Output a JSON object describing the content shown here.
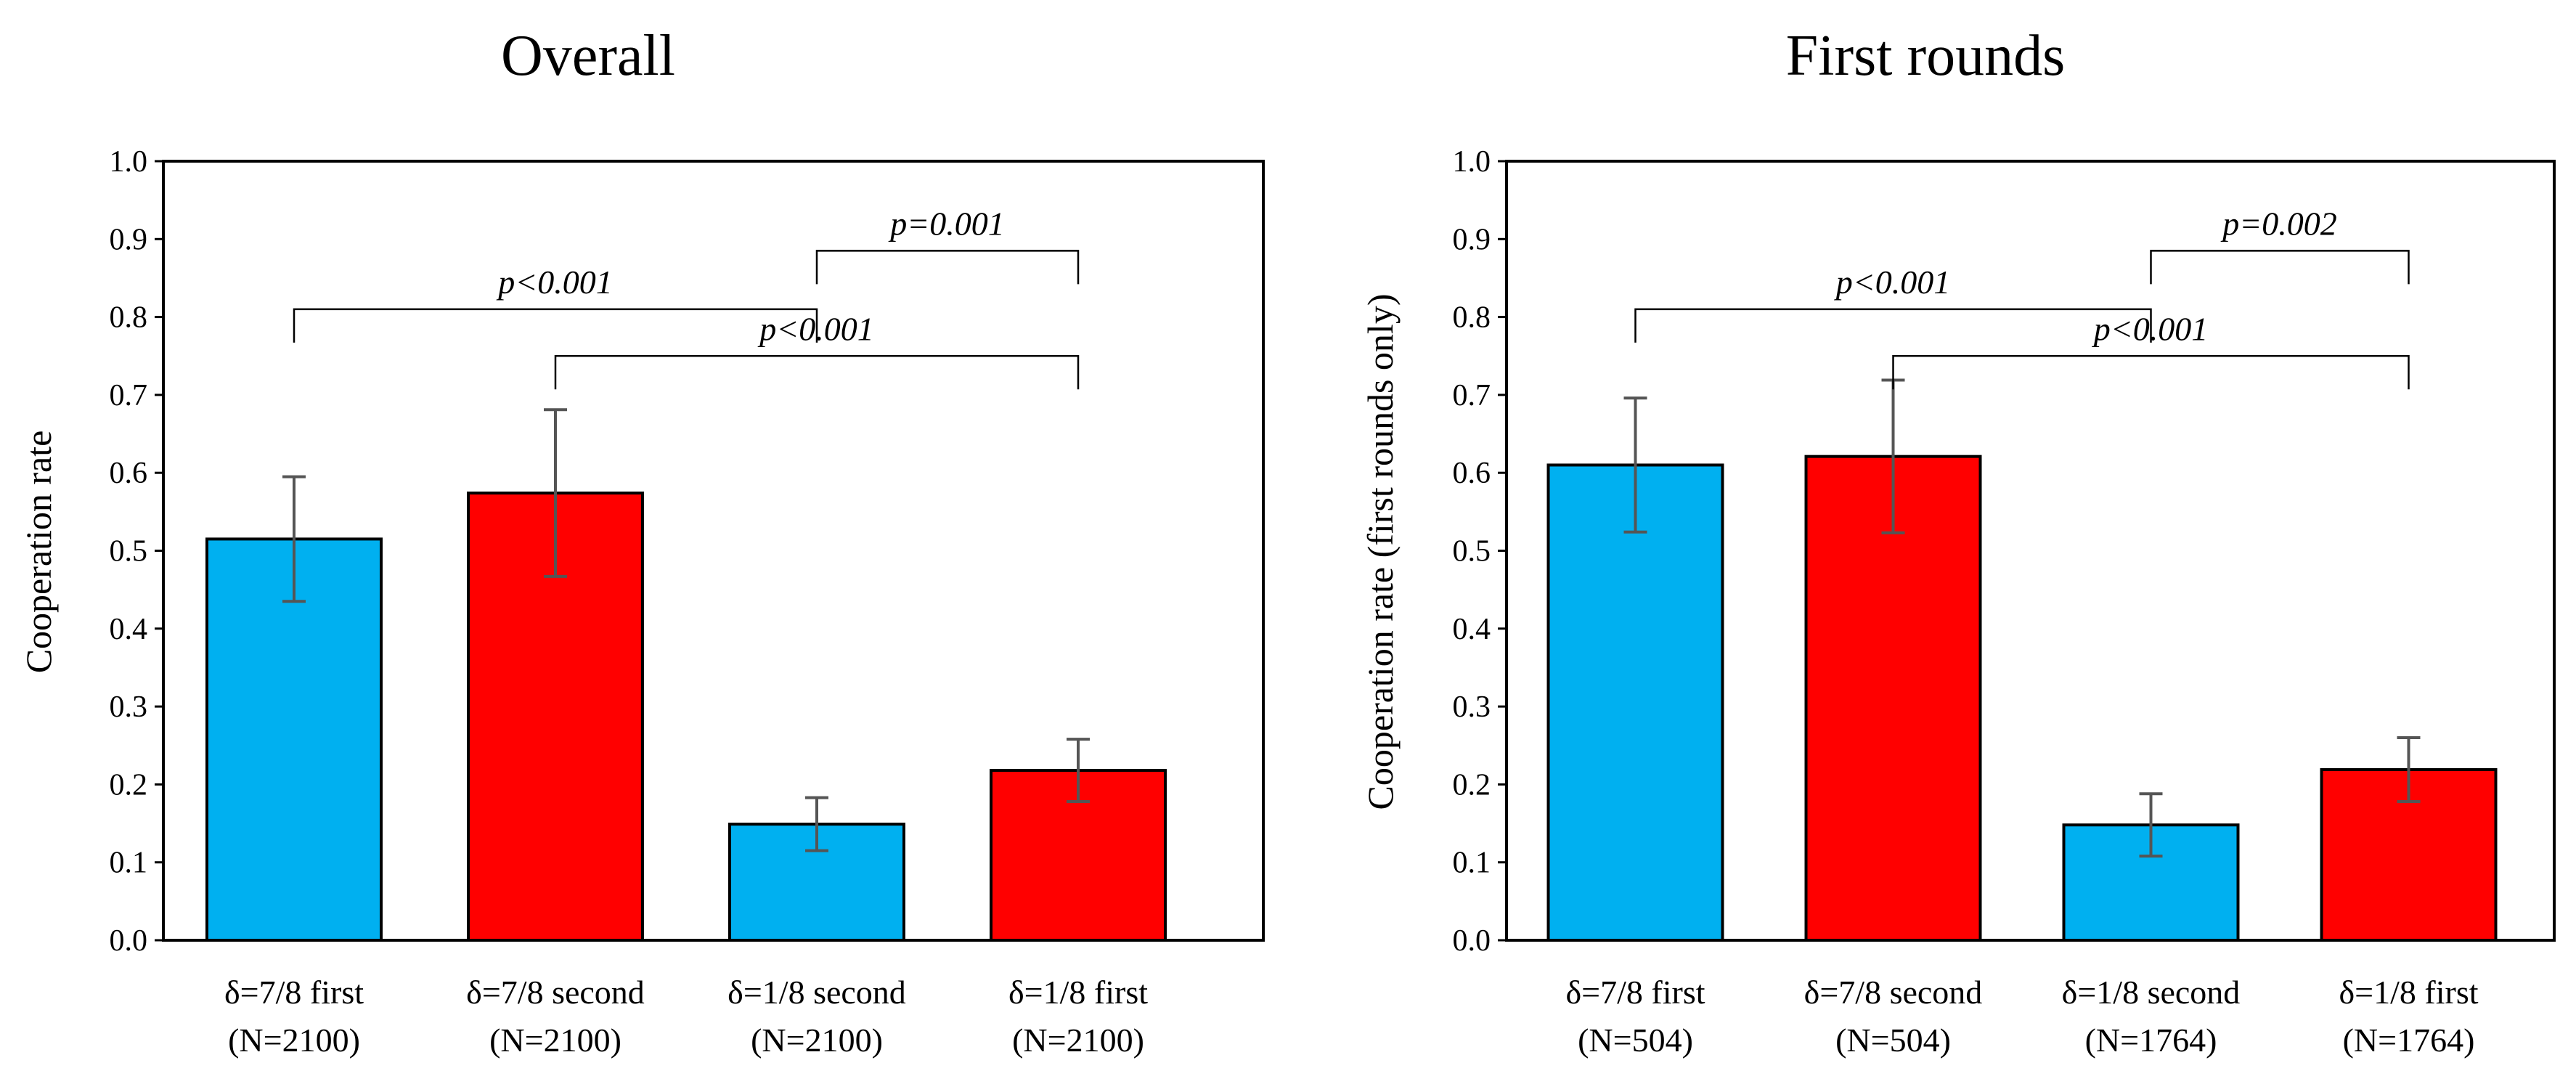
{
  "chart_data": [
    {
      "type": "bar",
      "title": "Overall",
      "ylabel": "Cooperation rate",
      "xlabel": "",
      "ylim": [
        0,
        1.0
      ],
      "yticks": [
        "0.0",
        "0.1",
        "0.2",
        "0.3",
        "0.4",
        "0.5",
        "0.6",
        "0.7",
        "0.8",
        "0.9",
        "1.0"
      ],
      "categories": [
        "δ=7/8 first",
        "δ=7/8 second",
        "δ=1/8 second",
        "δ=1/8 first"
      ],
      "sample_sizes": [
        "(N=2100)",
        "(N=2100)",
        "(N=2100)",
        "(N=2100)"
      ],
      "values": [
        0.515,
        0.574,
        0.149,
        0.218
      ],
      "errors": [
        0.08,
        0.107,
        0.034,
        0.04
      ],
      "colors": [
        "#00b0f0",
        "#ff0000",
        "#00b0f0",
        "#ff0000"
      ],
      "annotations": [
        {
          "text": "p=0.001",
          "from": 2,
          "to": 3,
          "y": 0.885
        },
        {
          "text": "p<0.001",
          "from": 0,
          "to": 2,
          "y": 0.81
        },
        {
          "text": "p<0.001",
          "from": 1,
          "to": 3,
          "y": 0.75
        }
      ]
    },
    {
      "type": "bar",
      "title": "First rounds",
      "ylabel": "Cooperation rate (first rounds only)",
      "xlabel": "",
      "ylim": [
        0,
        1.0
      ],
      "yticks": [
        "0.0",
        "0.1",
        "0.2",
        "0.3",
        "0.4",
        "0.5",
        "0.6",
        "0.7",
        "0.8",
        "0.9",
        "1.0"
      ],
      "categories": [
        "δ=7/8 first",
        "δ=7/8 second",
        "δ=1/8 second",
        "δ=1/8 first"
      ],
      "sample_sizes": [
        "(N=504)",
        "(N=504)",
        "(N=1764)",
        "(N=1764)"
      ],
      "values": [
        0.61,
        0.621,
        0.148,
        0.219
      ],
      "errors": [
        0.086,
        0.098,
        0.04,
        0.041
      ],
      "colors": [
        "#00b0f0",
        "#ff0000",
        "#00b0f0",
        "#ff0000"
      ],
      "annotations": [
        {
          "text": "p=0.002",
          "from": 2,
          "to": 3,
          "y": 0.885
        },
        {
          "text": "p<0.001",
          "from": 0,
          "to": 2,
          "y": 0.81
        },
        {
          "text": "p<0.001",
          "from": 1,
          "to": 3,
          "y": 0.75
        }
      ]
    }
  ]
}
